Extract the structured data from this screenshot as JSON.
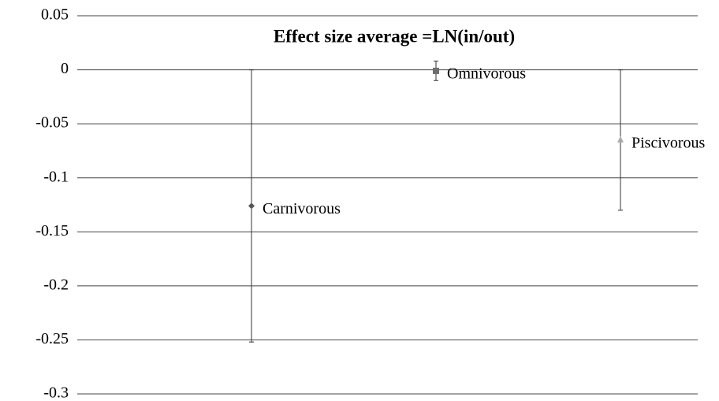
{
  "chart_data": {
    "type": "errorbar",
    "title": "Effect size average =LN(in/out)",
    "categories": [
      "Carnivorous",
      "Omnivorous",
      "Piscivorous"
    ],
    "values": [
      -0.126,
      -0.001,
      -0.065
    ],
    "errors": [
      0.126,
      0.009,
      0.065
    ],
    "markers": [
      "diamond",
      "square",
      "triangle"
    ],
    "colors": [
      "#555555",
      "#6e6e6e",
      "#aaaaaa"
    ],
    "ylim": [
      -0.3,
      0.05
    ],
    "yticks": [
      0.05,
      0,
      -0.05,
      -0.1,
      -0.15,
      -0.2,
      -0.25,
      -0.3
    ],
    "grid": true
  }
}
